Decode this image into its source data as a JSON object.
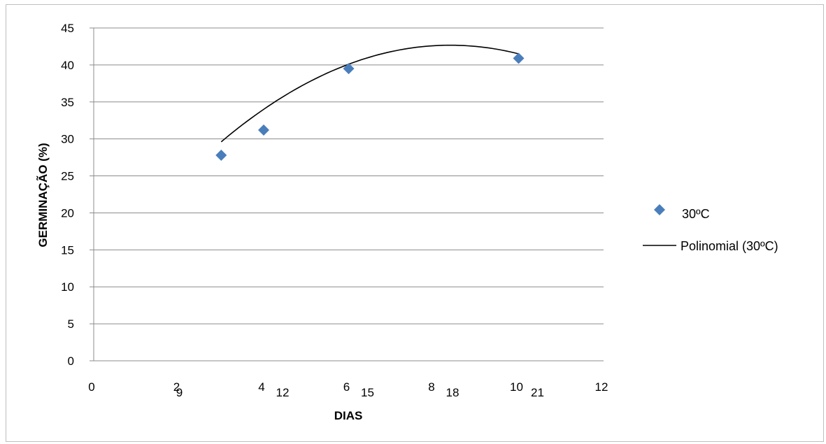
{
  "chart_data": {
    "type": "scatter",
    "xlabel": "DIAS",
    "ylabel": "GERMINAÇÃO (%)",
    "xlim": [
      0,
      12
    ],
    "ylim": [
      0,
      45
    ],
    "x_ticks": [
      0,
      2,
      4,
      6,
      8,
      10,
      12
    ],
    "y_ticks": [
      0,
      5,
      10,
      15,
      20,
      25,
      30,
      35,
      40,
      45
    ],
    "x_ticks_secondary": [
      {
        "x": 2,
        "label": "9"
      },
      {
        "x": 4,
        "label": "12"
      },
      {
        "x": 6,
        "label": "15"
      },
      {
        "x": 8,
        "label": "18"
      },
      {
        "x": 10,
        "label": "21"
      }
    ],
    "grid": "horizontal",
    "legend_position": "right",
    "series": [
      {
        "name": "30ºC",
        "kind": "points",
        "marker": "diamond",
        "color": "#4a7ebb",
        "x": [
          3,
          4,
          6,
          10
        ],
        "y": [
          27.8,
          31.2,
          39.5,
          40.9
        ]
      },
      {
        "name": "Polinomial (30ºC)",
        "kind": "trendline",
        "fit": "polynomial-2",
        "color": "#000000",
        "x_range": [
          3,
          10
        ],
        "coefficients": [
          11.0,
          7.55,
          -0.45
        ]
      }
    ]
  }
}
